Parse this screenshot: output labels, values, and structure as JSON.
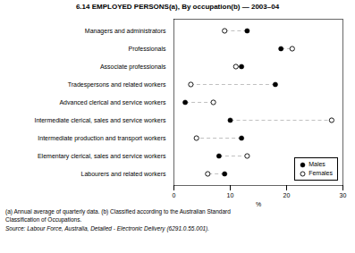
{
  "chart_data": {
    "type": "dot",
    "title": "6.14   EMPLOYED PERSONS(a), By occupation(b) — 2003–04",
    "categories": [
      "Managers and administrators",
      "Professionals",
      "Associate professionals",
      "Tradespersons and related workers",
      "Advanced clerical and service workers",
      "Intermediate clerical, sales and service workers",
      "Intermediate production and transport workers",
      "Elementary clerical, sales and service workers",
      "Labourers and related workers"
    ],
    "series": [
      {
        "name": "Males",
        "color": "#000000",
        "marker": "filled",
        "values": [
          13,
          19,
          12,
          18,
          2,
          10,
          12,
          8,
          9
        ]
      },
      {
        "name": "Females",
        "color": "#000000",
        "marker": "open",
        "values": [
          9,
          21,
          11,
          3,
          7,
          28,
          4,
          13,
          6
        ]
      }
    ],
    "xlabel": "%",
    "xlim": [
      0,
      30
    ],
    "xticks": [
      0,
      10,
      20,
      30
    ],
    "grid": false,
    "legend": "lower right",
    "footnotes": [
      "(a) Annual average of quarterly data.  (b) Classified according to the Australian Standard",
      "Classification of Occupations."
    ],
    "source": "Source:  Labour Force, Australia, Detailed - Electronic Delivery (6291.0.55.001)."
  }
}
